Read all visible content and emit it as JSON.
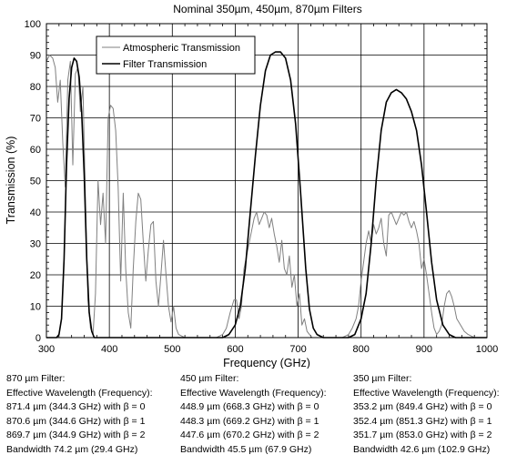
{
  "chart_data": {
    "type": "line",
    "title": "Nominal 350µm, 450µm, 870µm Filters",
    "xlabel": "Frequency (GHz)",
    "ylabel": "Transmission (%)",
    "xlim": [
      300,
      1000
    ],
    "ylim": [
      0,
      100
    ],
    "xticks": [
      300,
      400,
      500,
      600,
      700,
      800,
      900,
      1000
    ],
    "yticks": [
      0,
      10,
      20,
      30,
      40,
      50,
      60,
      70,
      80,
      90,
      100
    ],
    "grid": true,
    "legend_position": "top-left",
    "series": [
      {
        "name": "Atmospheric Transmission",
        "color": "#808080",
        "x": [
          300,
          305,
          310,
          314,
          318,
          322,
          326,
          330,
          334,
          338,
          342,
          346,
          350,
          354,
          358,
          362,
          366,
          370,
          374,
          378,
          382,
          386,
          390,
          394,
          398,
          402,
          406,
          410,
          414,
          418,
          422,
          426,
          430,
          434,
          438,
          442,
          446,
          450,
          454,
          458,
          462,
          466,
          470,
          474,
          478,
          482,
          486,
          490,
          494,
          498,
          502,
          506,
          510,
          520,
          530,
          540,
          550,
          560,
          570,
          580,
          586,
          592,
          598,
          602,
          606,
          610,
          614,
          618,
          622,
          626,
          630,
          634,
          638,
          642,
          646,
          650,
          654,
          658,
          662,
          666,
          670,
          674,
          678,
          682,
          686,
          690,
          694,
          698,
          702,
          706,
          710,
          714,
          718,
          722,
          726,
          730,
          740,
          750,
          760,
          770,
          780,
          786,
          792,
          796,
          800,
          804,
          808,
          812,
          816,
          820,
          824,
          828,
          832,
          836,
          840,
          844,
          848,
          852,
          856,
          860,
          864,
          868,
          872,
          876,
          880,
          884,
          888,
          892,
          896,
          900,
          904,
          908,
          912,
          916,
          920,
          924,
          928,
          932,
          936,
          940,
          944,
          948,
          952,
          958,
          964,
          970,
          980,
          990,
          1000
        ],
        "values": [
          88,
          90,
          89,
          86,
          75,
          82,
          62,
          48,
          82,
          88,
          55,
          84,
          86,
          72,
          80,
          44,
          12,
          3,
          1,
          14,
          50,
          36,
          46,
          30,
          70,
          74,
          73,
          66,
          48,
          18,
          46,
          22,
          8,
          3,
          22,
          37,
          46,
          44,
          30,
          18,
          28,
          36,
          37,
          18,
          10,
          20,
          31,
          20,
          10,
          5,
          10,
          3,
          1,
          0,
          0,
          0,
          0,
          0,
          0,
          1,
          3,
          8,
          12,
          12,
          6,
          10,
          22,
          26,
          30,
          34,
          38,
          40,
          36,
          38,
          40,
          39,
          35,
          38,
          33,
          29,
          24,
          31,
          22,
          20,
          26,
          16,
          20,
          10,
          14,
          4,
          6,
          2,
          1,
          0,
          0,
          0,
          0,
          0,
          0,
          0,
          1,
          3,
          6,
          10,
          18,
          24,
          30,
          34,
          30,
          36,
          33,
          35,
          38,
          30,
          26,
          39,
          40,
          38,
          36,
          38,
          40,
          39,
          40,
          37,
          35,
          37,
          34,
          30,
          22,
          25,
          20,
          14,
          8,
          3,
          1,
          2,
          4,
          10,
          14,
          15,
          13,
          10,
          6,
          4,
          2,
          1,
          0,
          0,
          0
        ]
      },
      {
        "name": "Filter Transmission",
        "color": "#000000",
        "x": [
          300,
          310,
          316,
          320,
          324,
          328,
          332,
          336,
          340,
          344,
          348,
          352,
          356,
          360,
          364,
          368,
          372,
          376,
          380,
          390,
          400,
          560,
          580,
          590,
          600,
          608,
          616,
          624,
          632,
          640,
          648,
          656,
          664,
          672,
          680,
          688,
          696,
          704,
          712,
          718,
          724,
          730,
          740,
          760,
          780,
          790,
          800,
          808,
          816,
          824,
          832,
          840,
          848,
          856,
          864,
          872,
          880,
          888,
          896,
          904,
          912,
          920,
          930,
          940,
          950,
          970,
          1000
        ],
        "values": [
          0,
          0,
          0,
          1,
          6,
          25,
          55,
          76,
          86,
          89,
          88,
          83,
          72,
          52,
          25,
          8,
          2,
          0,
          0,
          0,
          0,
          0,
          0,
          1,
          4,
          10,
          22,
          40,
          58,
          74,
          85,
          90,
          91,
          91,
          89,
          82,
          68,
          46,
          22,
          9,
          3,
          1,
          0,
          0,
          0,
          1,
          6,
          14,
          30,
          50,
          66,
          75,
          78,
          79,
          78,
          76,
          72,
          66,
          55,
          40,
          24,
          12,
          4,
          1,
          0,
          0,
          0
        ]
      }
    ]
  },
  "panels": [
    {
      "heading": "870 µm Filter:",
      "subheading": "Effective Wavelength (Frequency):",
      "lines": [
        "871.4 µm (344.3 GHz) with β = 0",
        "870.6 µm (344.6 GHz) with β = 1",
        "869.7 µm (344.9 GHz) with β = 2"
      ],
      "bandwidth": "Bandwidth 74.2 µm (29.4 GHz)"
    },
    {
      "heading": "450 µm Filter:",
      "subheading": "Effective Wavelength (Frequency):",
      "lines": [
        "448.9 µm (668.3 GHz) with β = 0",
        "448.3 µm (669.2 GHz) with β = 1",
        "447.6 µm (670.2 GHz) with β = 2"
      ],
      "bandwidth": "Bandwidth 45.5 µm (67.9 GHz)"
    },
    {
      "heading": "350 µm Filter:",
      "subheading": "Effective Wavelength (Frequency):",
      "lines": [
        "353.2 µm (849.4 GHz) with β = 0",
        "352.4 µm (851.3 GHz) with β = 1",
        "351.7 µm (853.0 GHz) with β = 2"
      ],
      "bandwidth": "Bandwidth 42.6 µm (102.9 GHz)"
    }
  ]
}
